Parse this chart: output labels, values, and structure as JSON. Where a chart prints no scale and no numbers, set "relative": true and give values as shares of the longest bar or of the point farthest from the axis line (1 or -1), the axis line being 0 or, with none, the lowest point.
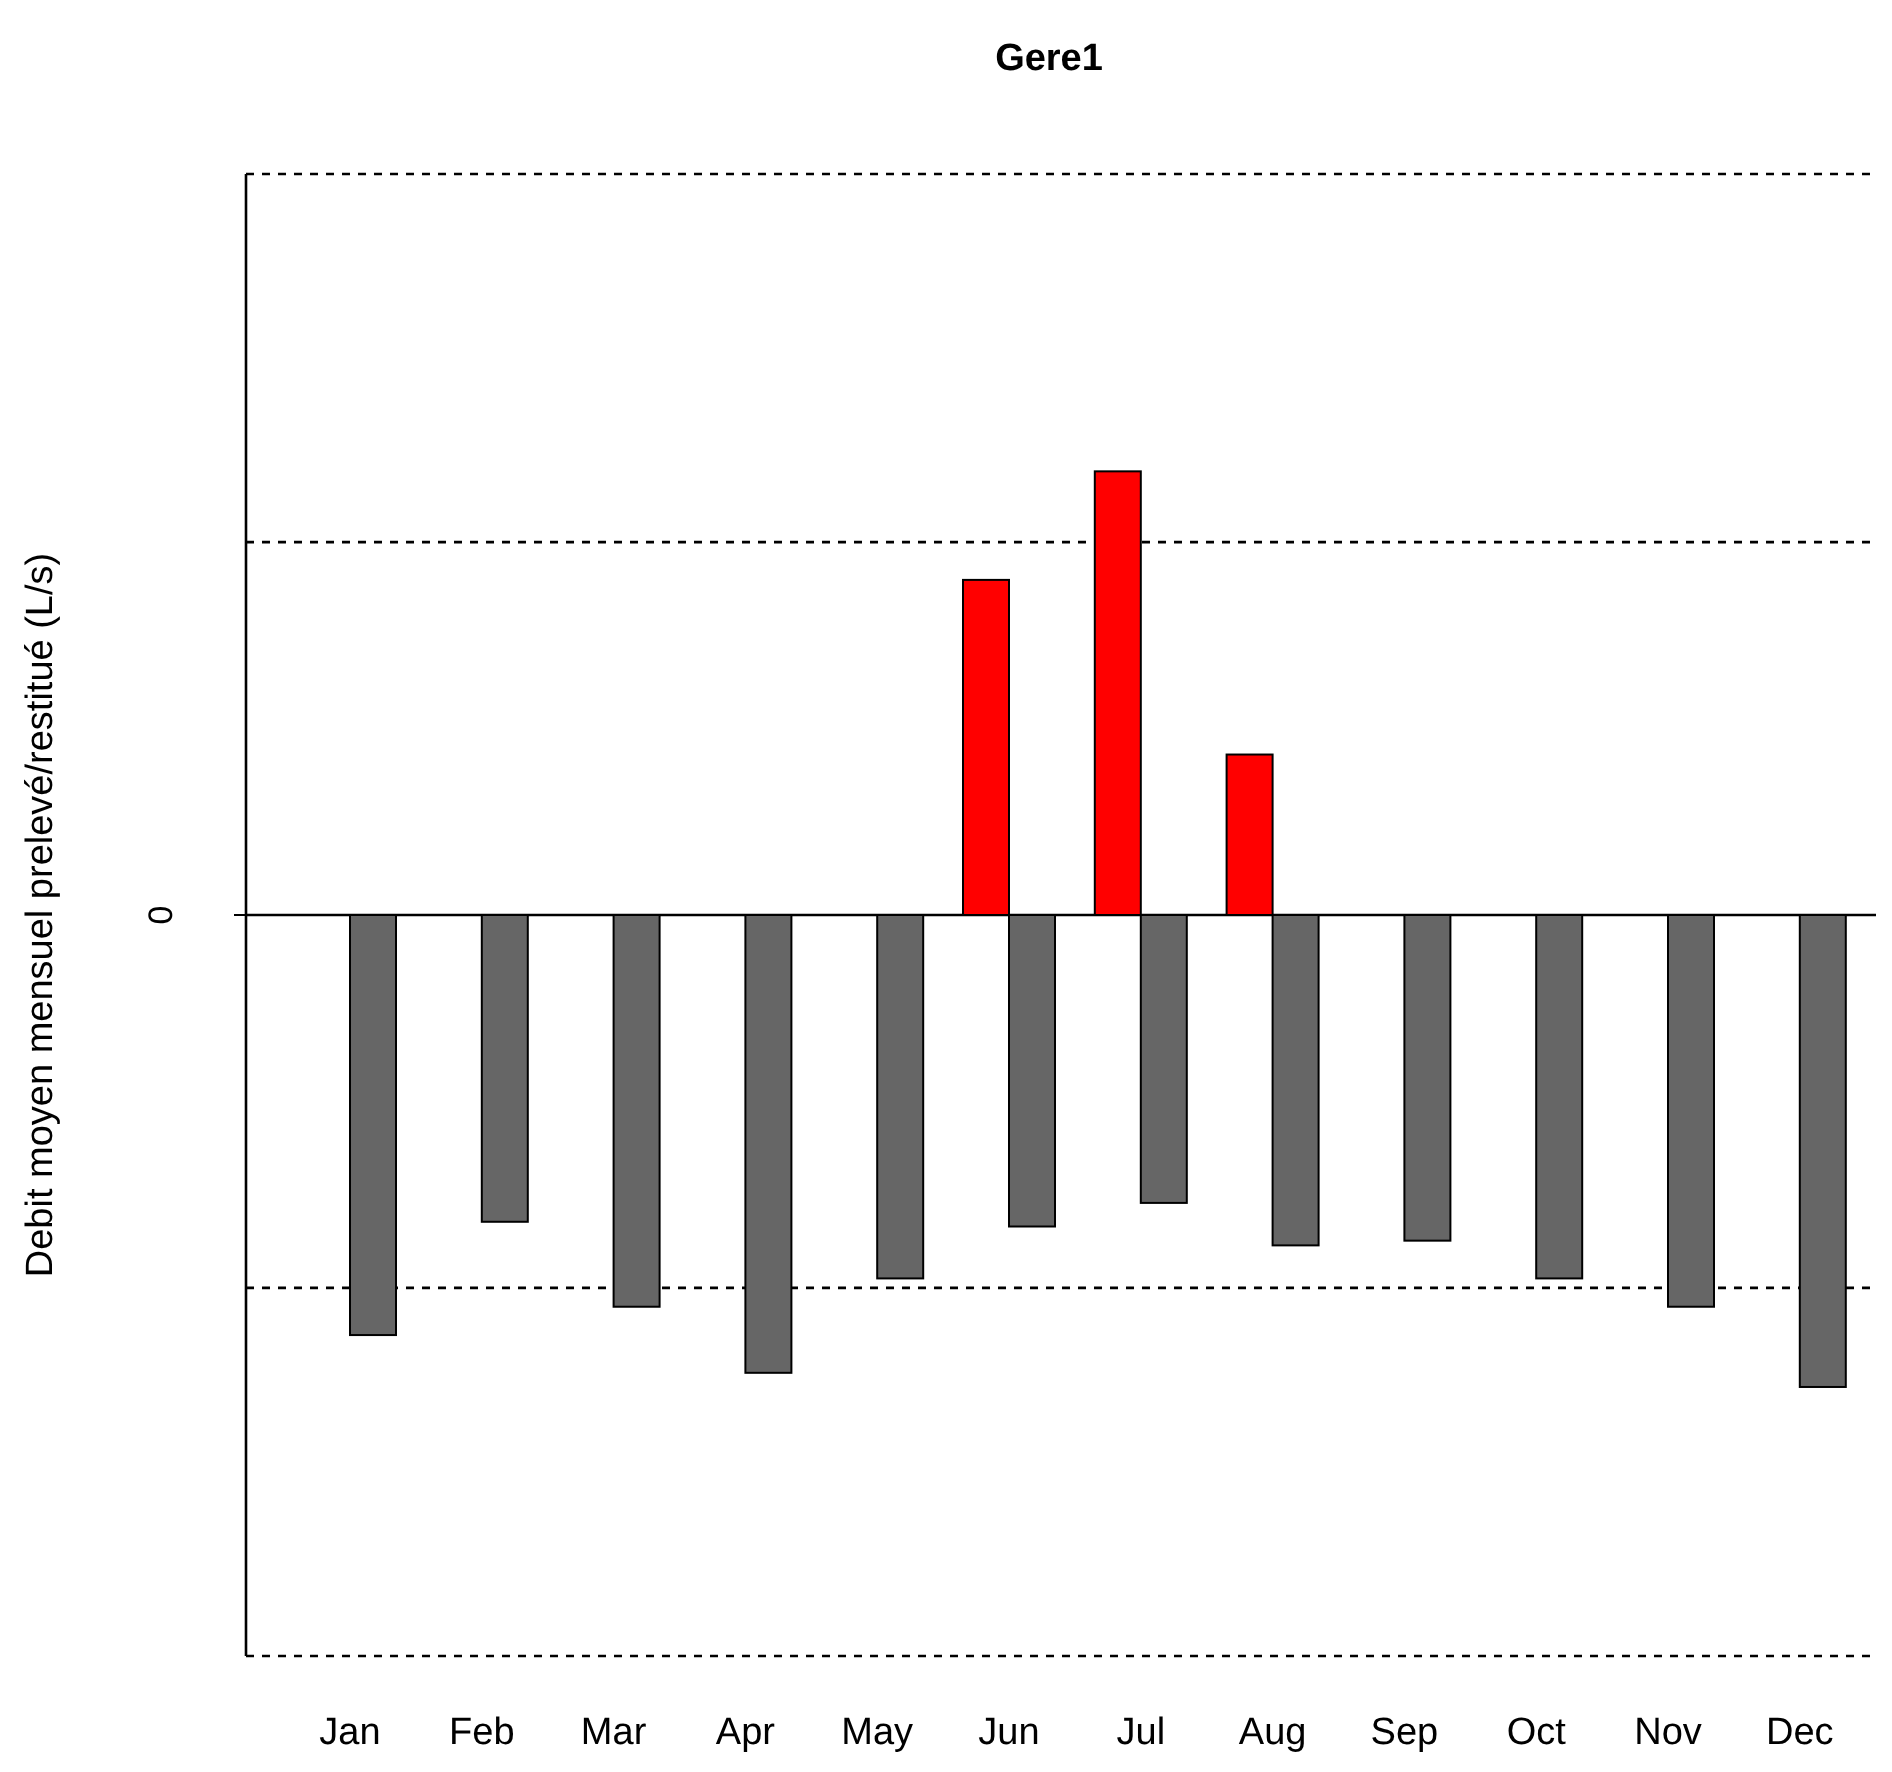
{
  "chart_data": {
    "type": "bar",
    "title": "Gere1",
    "ylabel": "Debit moyen mensuel prelevé/restitué (L/s)",
    "relative": true,
    "categories": [
      "Jan",
      "Feb",
      "Mar",
      "Apr",
      "May",
      "Jun",
      "Jul",
      "Aug",
      "Sep",
      "Oct",
      "Nov",
      "Dec"
    ],
    "series": [
      {
        "color": "#ff0000",
        "values": [
          0,
          0,
          0,
          0,
          0,
          0.71,
          0.94,
          0.34,
          0,
          0,
          0,
          0
        ]
      },
      {
        "color": "#666666",
        "values": [
          -0.89,
          -0.65,
          -0.83,
          -0.97,
          -0.77,
          -0.66,
          -0.61,
          -0.7,
          -0.69,
          -0.77,
          -0.83,
          -1
        ]
      }
    ],
    "ref_lines": [
      {
        "axis": "y",
        "value": 0,
        "label": "0",
        "line_style": "solid"
      },
      {
        "axis": "y",
        "value": 1.57,
        "line_style": "dashed"
      },
      {
        "axis": "y",
        "value": 0.79,
        "line_style": "dashed"
      },
      {
        "axis": "y",
        "value": -0.79,
        "line_style": "dashed"
      },
      {
        "axis": "y",
        "value": -1.57,
        "line_style": "dashed"
      }
    ]
  }
}
